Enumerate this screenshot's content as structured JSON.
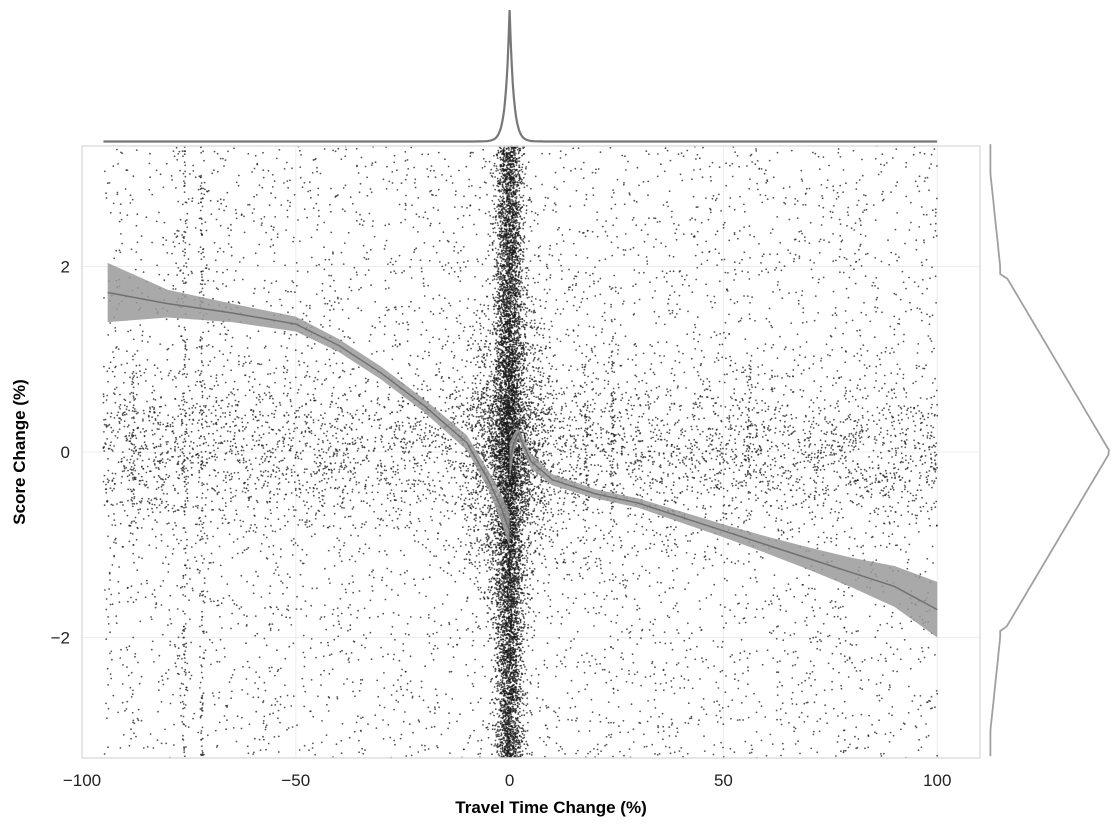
{
  "chart_data": {
    "type": "scatter",
    "title": "",
    "xlabel": "Travel Time Change (%)",
    "ylabel": "Score Change (%)",
    "xlim": [
      -100,
      110
    ],
    "ylim": [
      -3.3,
      3.3
    ],
    "x_ticks": [
      -100,
      -50,
      0,
      50,
      100
    ],
    "x_tick_labels": [
      "−100",
      "−50",
      "0",
      "50",
      "100"
    ],
    "y_ticks": [
      -2,
      0,
      2
    ],
    "y_tick_labels": [
      "−2",
      "0",
      "2"
    ],
    "grid": true,
    "legend": "none",
    "marginals": {
      "top": "density of travel time change, sharp peak at 0",
      "right": "density of score change, peak at 0"
    },
    "trend_left": {
      "x": [
        -94,
        -80,
        -65,
        -50,
        -40,
        -30,
        -20,
        -10,
        -5,
        -2,
        0
      ],
      "y": [
        1.72,
        1.6,
        1.5,
        1.38,
        1.15,
        0.85,
        0.5,
        0.1,
        -0.3,
        -0.6,
        -0.85
      ],
      "band_halfwidth": [
        0.32,
        0.15,
        0.1,
        0.08,
        0.07,
        0.07,
        0.07,
        0.08,
        0.1,
        0.15,
        0.18
      ]
    },
    "trend_right": {
      "x": [
        0,
        1,
        2,
        5,
        10,
        20,
        30,
        40,
        50,
        60,
        70,
        80,
        90,
        100
      ],
      "y": [
        -0.1,
        0.1,
        0.2,
        -0.1,
        -0.3,
        -0.45,
        -0.55,
        -0.7,
        -0.85,
        -1.0,
        -1.15,
        -1.3,
        -1.45,
        -1.7
      ],
      "band_halfwidth": [
        0.2,
        0.1,
        0.06,
        0.08,
        0.06,
        0.05,
        0.05,
        0.06,
        0.07,
        0.09,
        0.12,
        0.16,
        0.22,
        0.3
      ]
    },
    "colors": {
      "points": "#1a1a1a",
      "trend_band": "#9a9a9a",
      "marginal": "#777777",
      "grid": "#ececec",
      "panel_border": "#dddddd"
    }
  }
}
